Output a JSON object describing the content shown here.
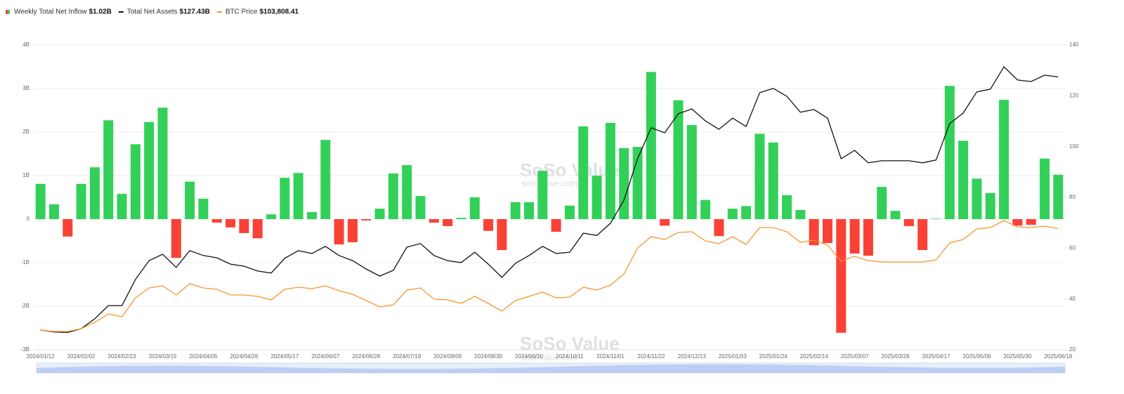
{
  "chart_data": {
    "type": "bar-line",
    "watermark": "SoSo Value",
    "watermark_url": "sosovalue.com",
    "categories": [
      "2024/01/12",
      null,
      null,
      "2024/02/02",
      null,
      null,
      "2024/02/23",
      null,
      null,
      "2024/03/15",
      null,
      null,
      "2024/04/05",
      null,
      null,
      "2024/04/26",
      null,
      null,
      "2024/05/17",
      null,
      null,
      "2024/06/07",
      null,
      null,
      "2024/06/28",
      null,
      null,
      "2024/07/19",
      null,
      null,
      "2024/08/09",
      null,
      null,
      "2024/08/30",
      null,
      null,
      "2024/09/20",
      null,
      null,
      "2024/10/11",
      null,
      null,
      "2024/11/01",
      null,
      null,
      "2024/11/22",
      null,
      null,
      "2024/12/13",
      null,
      null,
      "2025/01/03",
      null,
      null,
      "2025/01/24",
      null,
      null,
      "2025/02/14",
      null,
      null,
      "2025/03/07",
      null,
      null,
      "2025/03/28",
      null,
      null,
      "2025/04/17",
      null,
      null,
      "2025/05/09",
      null,
      null,
      "2025/05/30",
      null,
      null,
      "2025/06/18"
    ],
    "ylim": [
      -3,
      4
    ],
    "yticks": [
      {
        "value": 4,
        "label": "4B"
      },
      {
        "value": 3,
        "label": "3B"
      },
      {
        "value": 2,
        "label": "2B"
      },
      {
        "value": 1,
        "label": "1B"
      },
      0,
      {
        "value": -1,
        "label": "-1B"
      },
      {
        "value": -2,
        "label": "-2B"
      },
      {
        "value": -3,
        "label": "-3B"
      }
    ],
    "y2lim": [
      20,
      140
    ],
    "y2ticks": [
      140,
      120,
      100,
      80,
      60,
      40,
      20
    ],
    "y3lim": [
      34800,
      208400
    ],
    "grid": true,
    "series": [
      {
        "name": "Weekly Total Net Inflow",
        "latest_label": "$1.02B",
        "type": "bar",
        "color": "#33d059",
        "negative_color": "#fa4135",
        "values": [
          0.81,
          0.34,
          -0.4,
          0.81,
          1.19,
          2.27,
          0.58,
          1.72,
          2.23,
          2.56,
          -0.89,
          0.86,
          0.47,
          -0.08,
          -0.19,
          -0.32,
          -0.44,
          0.11,
          0.95,
          1.06,
          0.16,
          1.82,
          -0.58,
          -0.53,
          -0.03,
          0.24,
          1.05,
          1.24,
          0.53,
          -0.08,
          -0.16,
          0.03,
          0.5,
          -0.27,
          -0.71,
          0.39,
          0.39,
          1.11,
          -0.29,
          0.31,
          2.13,
          1.0,
          2.21,
          1.63,
          1.66,
          3.38,
          -0.15,
          2.73,
          2.16,
          0.44,
          -0.39,
          0.24,
          0.3,
          1.96,
          1.76,
          0.55,
          0.21,
          -0.6,
          -0.55,
          -2.61,
          -0.79,
          -0.84,
          0.74,
          0.19,
          -0.16,
          -0.71,
          0.01,
          3.06,
          1.8,
          0.93,
          0.6,
          2.74,
          -0.15,
          -0.13,
          1.39,
          1.02
        ]
      },
      {
        "name": "Total Net Assets",
        "latest_label": "$127.43B",
        "type": "line",
        "axis": "y2",
        "color": "#111111",
        "values": [
          27.8,
          27.0,
          26.8,
          28.3,
          32.2,
          37.4,
          37.4,
          47.7,
          55.1,
          57.6,
          52.4,
          59.0,
          57.1,
          56.2,
          53.7,
          52.9,
          51.0,
          50.2,
          56.0,
          59.0,
          57.9,
          60.7,
          57.1,
          55.1,
          51.8,
          49.0,
          51.3,
          60.4,
          61.8,
          57.1,
          55.1,
          54.3,
          58.4,
          53.7,
          48.5,
          54.0,
          57.1,
          60.7,
          57.9,
          58.4,
          65.9,
          65.0,
          69.8,
          78.9,
          95.2,
          107.4,
          105.4,
          112.9,
          114.8,
          110.1,
          106.8,
          111.2,
          107.9,
          121.2,
          122.9,
          119.8,
          113.5,
          114.6,
          111.2,
          95.2,
          98.5,
          93.6,
          94.4,
          94.4,
          94.4,
          93.6,
          94.7,
          109.0,
          113.2,
          121.5,
          122.6,
          131.4,
          126.2,
          125.6,
          128.1,
          127.43
        ]
      },
      {
        "name": "BTC Price",
        "latest_label": "$103,808.41",
        "type": "line",
        "axis": "y3",
        "color": "#f7962c",
        "values": [
          46000,
          45200,
          45200,
          46800,
          50400,
          55200,
          53600,
          64400,
          70000,
          71200,
          66000,
          72400,
          70000,
          69200,
          66000,
          66000,
          65200,
          63200,
          69200,
          70400,
          69600,
          71200,
          68400,
          66400,
          62800,
          59200,
          60400,
          68800,
          70000,
          63600,
          63200,
          61200,
          65200,
          61200,
          56800,
          62800,
          65200,
          67600,
          64400,
          64800,
          70400,
          68800,
          71600,
          78000,
          92800,
          99200,
          97600,
          101600,
          102000,
          96800,
          95200,
          99200,
          94800,
          104400,
          104400,
          102000,
          96000,
          97200,
          94400,
          85200,
          88000,
          85600,
          84800,
          84800,
          84800,
          84800,
          86000,
          95600,
          97600,
          103600,
          104400,
          108400,
          104800,
          104400,
          105200,
          103808.41
        ]
      }
    ]
  }
}
